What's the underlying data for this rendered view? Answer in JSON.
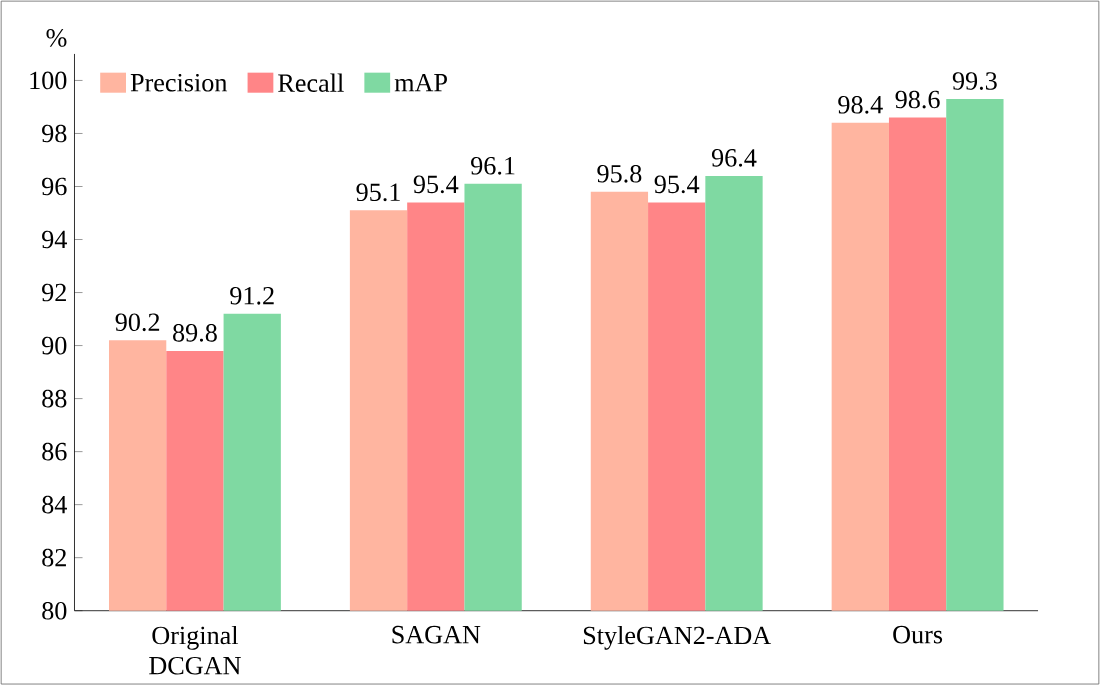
{
  "chart_data": {
    "type": "bar",
    "ylabel": "%",
    "categories": [
      "Original DCGAN",
      "SAGAN",
      "StyleGAN2-ADA",
      "Ours"
    ],
    "series": [
      {
        "name": "Precision",
        "color": "#ffb5a0",
        "values": [
          90.2,
          95.1,
          95.8,
          98.4
        ]
      },
      {
        "name": "Recall",
        "color": "#ff8587",
        "values": [
          89.8,
          95.4,
          95.4,
          98.6
        ]
      },
      {
        "name": "mAP",
        "color": "#7fd9a2",
        "values": [
          91.2,
          96.1,
          96.4,
          99.3
        ]
      }
    ],
    "ylim": [
      80,
      101
    ],
    "yticks": [
      80,
      82,
      84,
      86,
      88,
      90,
      92,
      94,
      96,
      98,
      100
    ],
    "data_labels": true,
    "legend": "top left",
    "grid": false
  }
}
